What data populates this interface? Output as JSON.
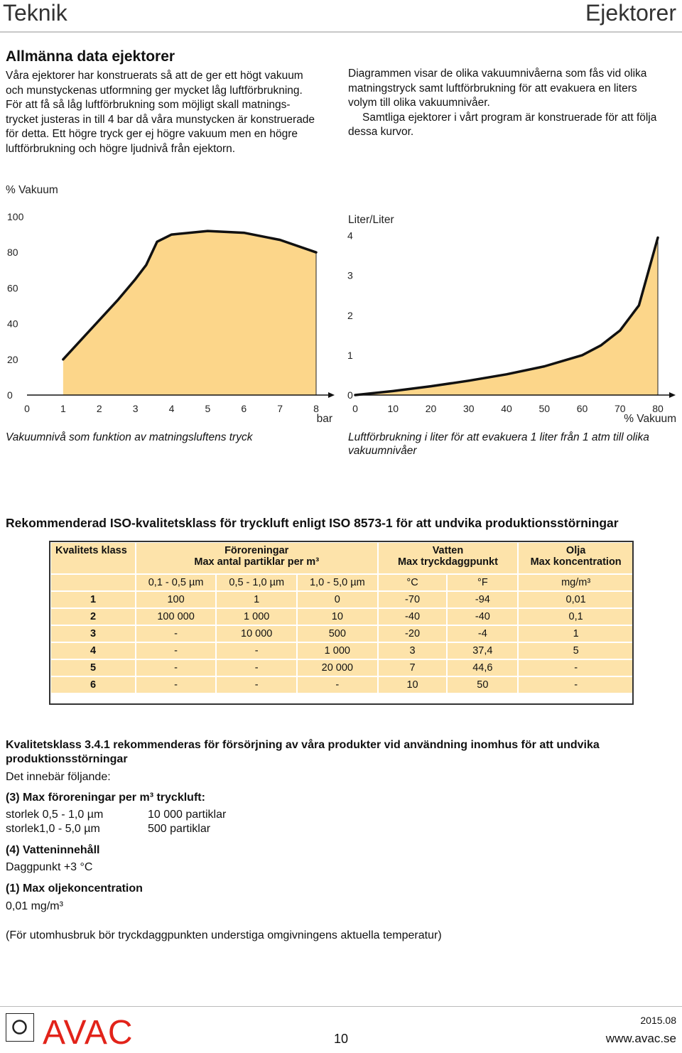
{
  "header": {
    "left": "Teknik",
    "right": "Ejektorer"
  },
  "intro": {
    "heading": "Allmänna data ejektorer",
    "left_lines": [
      "Våra ejektorer har konstruerats så att de ger ett högt vakuum",
      "och munstyckenas utformning ger mycket låg luftförbrukning.",
      "För att få så låg luftförbrukning som möjligt skall matnings-",
      "trycket justeras in till 4 bar då våra munstycken är konstruerade",
      "för detta. Ett högre tryck ger ej högre vakuum men en högre",
      "luftförbrukning och högre ljudnivå från ejektorn."
    ],
    "right_lines": [
      "Diagrammen visar de olika vakuumnivåerna som fås vid olika",
      "matningstryck samt luftförbrukning för att evakuera en liters",
      "volym till olika vakuumnivåer."
    ],
    "right_lines2": [
      "Samtliga ejektorer i vårt program är konstruerade för att följa",
      "dessa kurvor."
    ]
  },
  "chart_data": [
    {
      "type": "area",
      "ylabel": "% Vakuum",
      "xlabel": "bar",
      "x_ticks": [
        "0",
        "1",
        "2",
        "3",
        "4",
        "5",
        "6",
        "7",
        "8"
      ],
      "y_ticks": [
        "0",
        "20",
        "40",
        "60",
        "80",
        "100"
      ],
      "xlim": [
        0,
        8
      ],
      "ylim": [
        0,
        100
      ],
      "x": [
        1,
        1.5,
        2,
        2.5,
        3,
        3.3,
        3.6,
        4,
        5,
        6,
        7,
        8
      ],
      "y": [
        20,
        31,
        42,
        53,
        65,
        73,
        86,
        90,
        92,
        91,
        87,
        80
      ],
      "fill_color": "#fcd68a",
      "caption": "Vakuumnivå som funktion av matningsluftens tryck"
    },
    {
      "type": "area",
      "ylabel": "Liter/Liter",
      "xlabel": "% Vakuum",
      "x_ticks": [
        "0",
        "10",
        "20",
        "30",
        "40",
        "50",
        "60",
        "70",
        "80"
      ],
      "y_ticks": [
        "0",
        "1",
        "2",
        "3",
        "4"
      ],
      "xlim": [
        0,
        80
      ],
      "ylim": [
        0,
        4.6
      ],
      "x": [
        0,
        10,
        20,
        30,
        40,
        50,
        60,
        65,
        70,
        75,
        80
      ],
      "y": [
        0,
        0.1,
        0.22,
        0.36,
        0.52,
        0.72,
        1.0,
        1.25,
        1.62,
        2.25,
        3.95
      ],
      "fill_color": "#fcd68a",
      "caption_lines": [
        "Luftförbrukning i liter för att evakuera 1 liter från 1 atm till olika",
        "vakuumnivåer"
      ]
    }
  ],
  "iso": {
    "heading": "Rekommenderad ISO-kvalitetsklass för tryckluft enligt ISO 8573-1 för att undvika produktionsstörningar",
    "col_class": "Kvalitets klass",
    "grp_pollution": [
      "Föroreningar",
      "Max antal partiklar per m³"
    ],
    "grp_water": [
      "Vatten",
      "Max tryckdaggpunkt"
    ],
    "grp_oil": [
      "Olja",
      "Max koncentration"
    ],
    "units": [
      "0,1 - 0,5 µm",
      "0,5 - 1,0 µm",
      "1,0 - 5,0 µm",
      "°C",
      "°F",
      "mg/m³"
    ],
    "rows": [
      [
        "1",
        "100",
        "1",
        "0",
        "-70",
        "-94",
        "0,01"
      ],
      [
        "2",
        "100 000",
        "1 000",
        "10",
        "-40",
        "-40",
        "0,1"
      ],
      [
        "3",
        "-",
        "10 000",
        "500",
        "-20",
        "-4",
        "1"
      ],
      [
        "4",
        "-",
        "-",
        "1 000",
        "3",
        "37,4",
        "5"
      ],
      [
        "5",
        "-",
        "-",
        "20 000",
        "7",
        "44,6",
        "-"
      ],
      [
        "6",
        "-",
        "-",
        "-",
        "10",
        "50",
        "-"
      ]
    ]
  },
  "quality": {
    "heading_lines": [
      "Kvalitetsklass 3.4.1 rekommenderas för försörjning av våra produkter vid användning inomhus för att undvika",
      "produktionsstörningar"
    ],
    "intro": "Det innebär följande:",
    "s1_title": "(3) Max föroreningar per m³ tryckluft:",
    "s1_rows": [
      [
        "storlek 0,5 - 1,0 µm",
        "10 000 partiklar"
      ],
      [
        "storlek1,0 - 5,0 µm",
        "500 partiklar"
      ]
    ],
    "s2_title": "(4) Vatteninnehåll",
    "s2_value": "Daggpunkt +3 °C",
    "s3_title": "(1)  Max oljekoncentration",
    "s3_value": "0,01 mg/m³",
    "note": "(För utomhusbruk bör tryckdaggpunkten understiga omgivningens aktuella temperatur)"
  },
  "footer": {
    "brand": "AVAC",
    "page": "10",
    "date": "2015.08",
    "url": "www.avac.se",
    "brand_color": "#e2231a"
  }
}
